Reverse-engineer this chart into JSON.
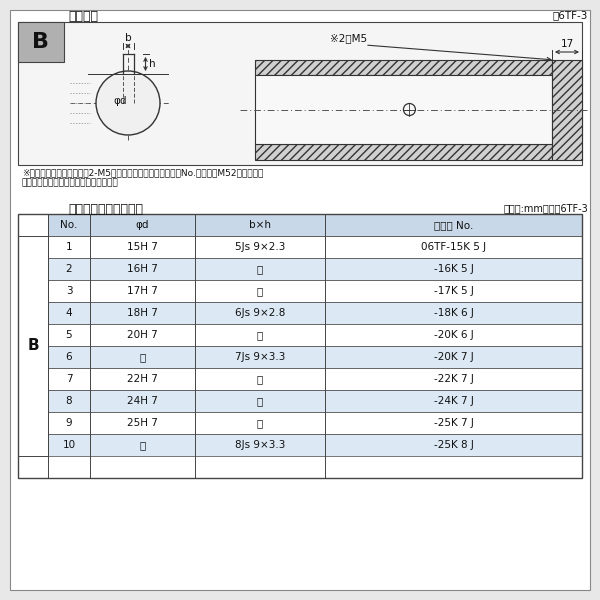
{
  "bg_color": "#e8e8e8",
  "page_bg": "#ffffff",
  "title1": "軸穴形状",
  "title1_right": "図6TF-3",
  "title2": "軸穴形状コード一覧表",
  "title2_right": "（単位:mm）　表6TF-3",
  "note1": "※セットボルト用タップ（2-M5）が必要な場合は右記コードNo.の末尾にM52を付ける。",
  "note2": "（セットボルトは付属されています。）",
  "label_B": "B",
  "dim_label_b": "b",
  "dim_label_h": "h",
  "dim_label_phid": "φd",
  "dim_m5": "※2－M5",
  "dim_17": "17",
  "table_headers": [
    "No.",
    "φd",
    "b×h",
    "コード No."
  ],
  "table_col_B": "B",
  "table_rows": [
    [
      "1",
      "15H 7",
      "5Js 9×2.3",
      "06TF-15K 5 J"
    ],
    [
      "2",
      "16H 7",
      "「",
      "-16K 5 J"
    ],
    [
      "3",
      "17H 7",
      "「",
      "-17K 5 J"
    ],
    [
      "4",
      "18H 7",
      "6Js 9×2.8",
      "-18K 6 J"
    ],
    [
      "5",
      "20H 7",
      "「",
      "-20K 6 J"
    ],
    [
      "6",
      "「",
      "7Js 9×3.3",
      "-20K 7 J"
    ],
    [
      "7",
      "22H 7",
      "「",
      "-22K 7 J"
    ],
    [
      "8",
      "24H 7",
      "「",
      "-24K 7 J"
    ],
    [
      "9",
      "25H 7",
      "「",
      "-25K 7 J"
    ],
    [
      "10",
      "「",
      "8Js 9×3.3",
      "-25K 8 J"
    ]
  ],
  "ditto": "〜",
  "row_colors": [
    "#ffffff",
    "#dce9f5"
  ],
  "header_color": "#c8d8e8",
  "border_color": "#444444",
  "text_color": "#111111",
  "hatch_color": "#aaaaaa",
  "gray_box": "#b0b0b0"
}
